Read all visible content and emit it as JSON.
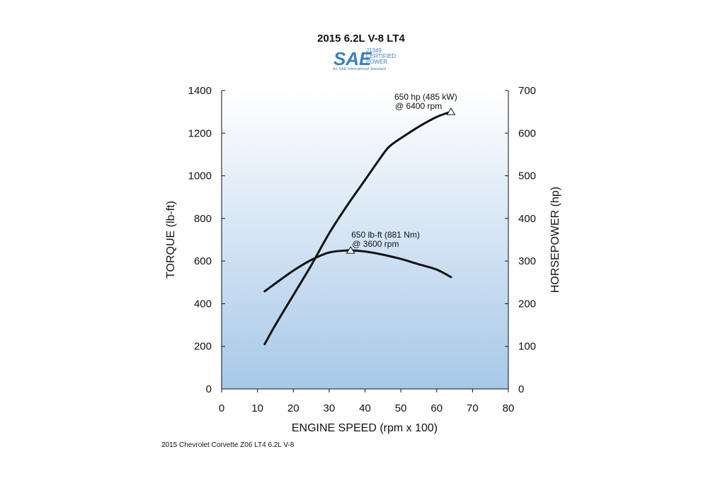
{
  "chart_data": {
    "type": "line",
    "title": "2015 6.2L V-8 LT4",
    "logo": {
      "mark": "SAE",
      "line1": "J1349",
      "line2": "CERTIFIED",
      "line3": "POWER",
      "tagline": "An SAE International Standard"
    },
    "xlabel": "ENGINE SPEED (rpm x 100)",
    "ylabel_left": "TORQUE (lb-ft)",
    "ylabel_right": "HORSEPOWER (hp)",
    "xlim": [
      0,
      80
    ],
    "ylim_left": [
      0,
      1400
    ],
    "ylim_right": [
      0,
      700
    ],
    "x_ticks": [
      0,
      10,
      20,
      30,
      40,
      50,
      60,
      70,
      80
    ],
    "y_left_ticks": [
      0,
      200,
      400,
      600,
      800,
      1000,
      1200,
      1400
    ],
    "y_right_ticks": [
      0,
      100,
      200,
      300,
      400,
      500,
      600,
      700
    ],
    "grid": false,
    "background_gradient": [
      "#ffffff",
      "#a7c8e8"
    ],
    "series": [
      {
        "axis": "left",
        "color": "#111111",
        "x": [
          12,
          15,
          20,
          25,
          30,
          35,
          36,
          40,
          45,
          50,
          55,
          60,
          64
        ],
        "y": [
          458,
          495,
          555,
          605,
          640,
          650,
          650,
          645,
          630,
          610,
          585,
          560,
          525
        ]
      },
      {
        "axis": "right",
        "color": "#111111",
        "x": [
          12,
          15,
          20,
          25,
          30,
          35,
          40,
          45,
          47,
          50,
          55,
          60,
          64
        ],
        "y": [
          105,
          150,
          220,
          290,
          365,
          430,
          490,
          550,
          570,
          588,
          615,
          638,
          650
        ]
      }
    ],
    "annotations": [
      {
        "x": 64,
        "y": 650,
        "axis": "right",
        "lines": [
          "650 hp (485 kW)",
          "@ 6400 rpm"
        ]
      },
      {
        "x": 36,
        "y": 650,
        "axis": "left",
        "lines": [
          "650 lb-ft (881 Nm)",
          "@ 3600 rpm"
        ]
      }
    ]
  },
  "footnote": "2015 Chevrolet Corvette Z06 LT4 6.2L V-8"
}
